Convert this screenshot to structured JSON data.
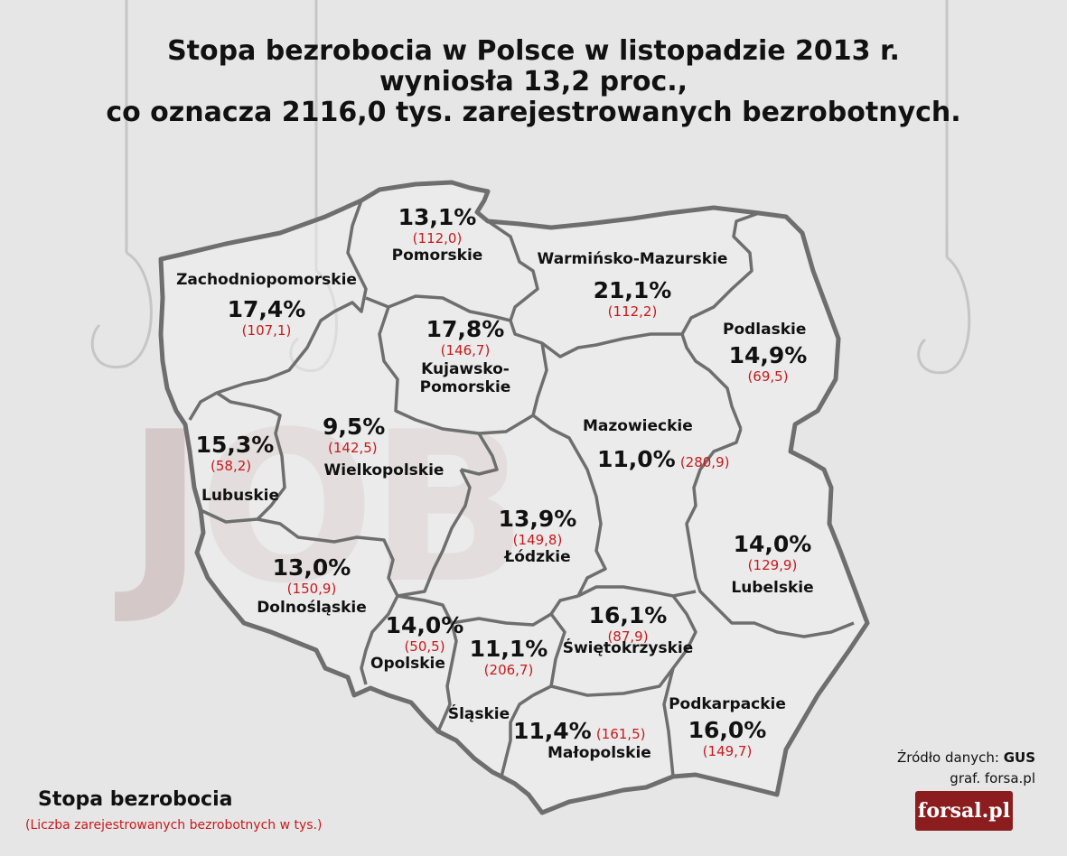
{
  "title": {
    "line1": "Stopa bezrobocia w Polsce w listopadzie 2013 r.",
    "line2": "wyniosła 13,2 proc.,",
    "line3": "co oznacza 2116,0 tys. zarejestrowanych bezrobotnych."
  },
  "background_word": "JOB",
  "regions": [
    {
      "name": "Pomorskie",
      "rate": "13,1%",
      "count": "(112,0)"
    },
    {
      "name": "Zachodniopomorskie",
      "rate": "17,4%",
      "count": "(107,1)"
    },
    {
      "name": "Warmińsko-Mazurskie",
      "rate": "21,1%",
      "count": "(112,2)"
    },
    {
      "name": "Podlaskie",
      "rate": "14,9%",
      "count": "(69,5)"
    },
    {
      "name_line1": "Kujawsko-",
      "name_line2": "Pomorskie",
      "rate": "17,8%",
      "count": "(146,7)"
    },
    {
      "name": "Lubuskie",
      "rate": "15,3%",
      "count": "(58,2)"
    },
    {
      "name": "Wielkopolskie",
      "rate": "9,5%",
      "count": "(142,5)"
    },
    {
      "name": "Mazowieckie",
      "rate": "11,0%",
      "count": "(280,9)"
    },
    {
      "name": "Łódzkie",
      "rate": "13,9%",
      "count": "(149,8)"
    },
    {
      "name": "Lubelskie",
      "rate": "14,0%",
      "count": "(129,9)"
    },
    {
      "name": "Dolnośląskie",
      "rate": "13,0%",
      "count": "(150,9)"
    },
    {
      "name": "Opolskie",
      "rate": "14,0%",
      "count": "(50,5)"
    },
    {
      "name": "Śląskie",
      "rate": "11,1%",
      "count": "(206,7)"
    },
    {
      "name": "Świętokrzyskie",
      "rate": "16,1%",
      "count": "(87,9)"
    },
    {
      "name": "Małopolskie",
      "rate": "11,4%",
      "count": "(161,5)"
    },
    {
      "name": "Podkarpackie",
      "rate": "16,0%",
      "count": "(149,7)"
    }
  ],
  "legend": {
    "title": "Stopa bezrobocia",
    "subtitle": "(Liczba zarejestrowanych bezrobotnych w tys.)"
  },
  "source": {
    "label": "Źródło danych:",
    "value": "GUS",
    "credit": "graf. forsa.pl"
  },
  "logo": "forsal.pl",
  "colors": {
    "background": "#e6e6e6",
    "border": "#6e6e6e",
    "count_red": "#c8191c",
    "logo_bg": "#8b1d1f"
  }
}
